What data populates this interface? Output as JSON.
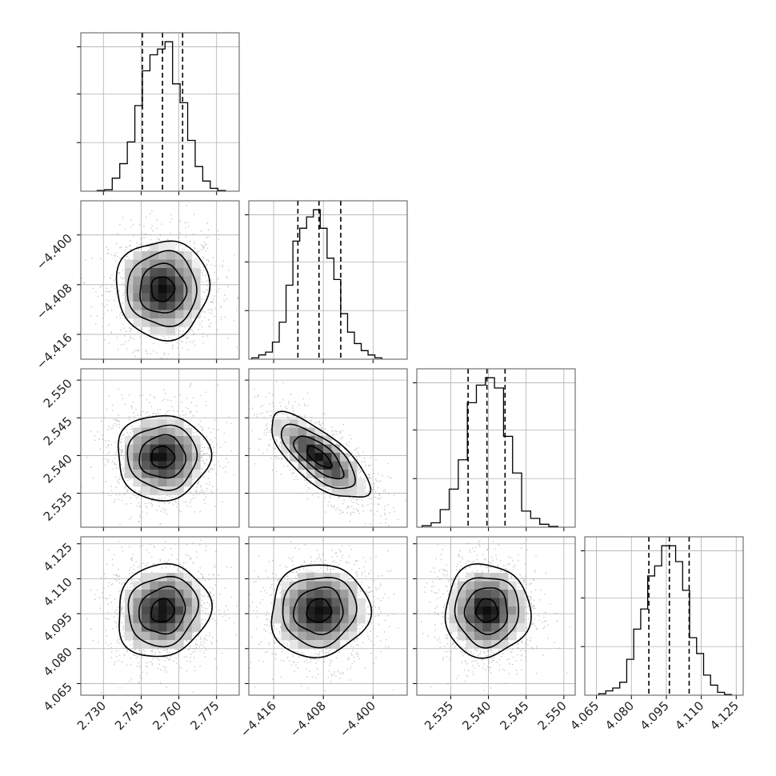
{
  "chart_data": {
    "type": "corner",
    "title": "",
    "n_params": 4,
    "quantile_levels": [
      0.16,
      0.5,
      0.84
    ],
    "colors": {
      "hist_line": "#000000",
      "grid": "#b0b0b0",
      "frame": "#555555",
      "scatter": "#9a9a9a",
      "density_dark": "#000000"
    },
    "params": [
      {
        "name": "",
        "range": [
          2.721,
          2.784
        ],
        "ticks": [
          "2.730",
          "2.745",
          "2.760",
          "2.775"
        ],
        "tick_values": [
          2.73,
          2.745,
          2.76,
          2.775
        ],
        "median": 2.7535,
        "quantiles": [
          2.7455,
          2.7535,
          2.7615
        ],
        "hist_bins": [
          2.7275,
          2.7305,
          2.7335,
          2.7365,
          2.7395,
          2.7425,
          2.7455,
          2.7485,
          2.7515,
          2.7545,
          2.7575,
          2.7605,
          2.7635,
          2.7665,
          2.7695,
          2.7725,
          2.7755,
          2.7785
        ],
        "hist_counts": [
          0.5,
          1,
          9,
          19,
          34,
          59,
          83,
          94,
          98,
          103,
          74,
          61,
          35,
          17,
          7,
          2,
          0.5
        ]
      },
      {
        "name": "",
        "range": [
          -4.42,
          -4.3945
        ],
        "ticks": [
          "−4.416",
          "−4.408",
          "−4.400"
        ],
        "tick_values": [
          -4.416,
          -4.408,
          -4.4
        ],
        "median": -4.4087,
        "quantiles": [
          -4.4121,
          -4.4087,
          -4.4052
        ],
        "hist_bins": [
          -4.4195,
          -4.4184,
          -4.4173,
          -4.4162,
          -4.4151,
          -4.414,
          -4.4129,
          -4.4118,
          -4.4107,
          -4.4096,
          -4.4085,
          -4.4074,
          -4.4063,
          -4.4052,
          -4.4041,
          -4.403,
          -4.4019,
          -4.4008,
          -4.3997,
          -4.3986
        ],
        "hist_counts": [
          1,
          3,
          5,
          12,
          26,
          52,
          83,
          92,
          100,
          105,
          92,
          71,
          56,
          32,
          19,
          11,
          6,
          3,
          1
        ]
      },
      {
        "name": "",
        "range": [
          2.5305,
          2.5515
        ],
        "ticks": [
          "2.535",
          "2.540",
          "2.545",
          "2.550"
        ],
        "tick_values": [
          2.535,
          2.54,
          2.545,
          2.55
        ],
        "median": 2.5398,
        "quantiles": [
          2.5373,
          2.5398,
          2.5422
        ],
        "hist_bins": [
          2.5312,
          2.5324,
          2.5336,
          2.5348,
          2.536,
          2.5372,
          2.5384,
          2.5396,
          2.5408,
          2.542,
          2.5432,
          2.5444,
          2.5456,
          2.5468,
          2.548,
          2.5492
        ],
        "hist_counts": [
          1,
          3,
          12,
          26,
          46,
          85,
          97,
          102,
          95,
          62,
          37,
          11,
          6,
          2,
          0.5
        ]
      },
      {
        "name": "",
        "range": [
          4.06,
          4.128
        ],
        "ticks": [
          "4.065",
          "4.080",
          "4.095",
          "4.110",
          "4.125"
        ],
        "tick_values": [
          4.065,
          4.08,
          4.095,
          4.11,
          4.125
        ],
        "median": 4.0963,
        "quantiles": [
          4.0875,
          4.0963,
          4.1048
        ],
        "hist_bins": [
          4.066,
          4.069,
          4.072,
          4.075,
          4.078,
          4.081,
          4.084,
          4.087,
          4.09,
          4.093,
          4.096,
          4.099,
          4.102,
          4.105,
          4.108,
          4.111,
          4.114,
          4.117,
          4.12,
          4.123
        ],
        "hist_counts": [
          1,
          3,
          5,
          9,
          25,
          46,
          60,
          83,
          90,
          104,
          104,
          93,
          73,
          40,
          29,
          14,
          7,
          2,
          0.5
        ]
      }
    ],
    "pair_correlations": {
      "1_0": 0.0,
      "2_0": 0.0,
      "2_1": -0.72,
      "3_0": 0.1,
      "3_1": 0.05,
      "3_2": 0.0
    },
    "contour_levels_sigma": [
      0.5,
      1.0,
      1.5,
      2.0
    ],
    "grid": true
  }
}
